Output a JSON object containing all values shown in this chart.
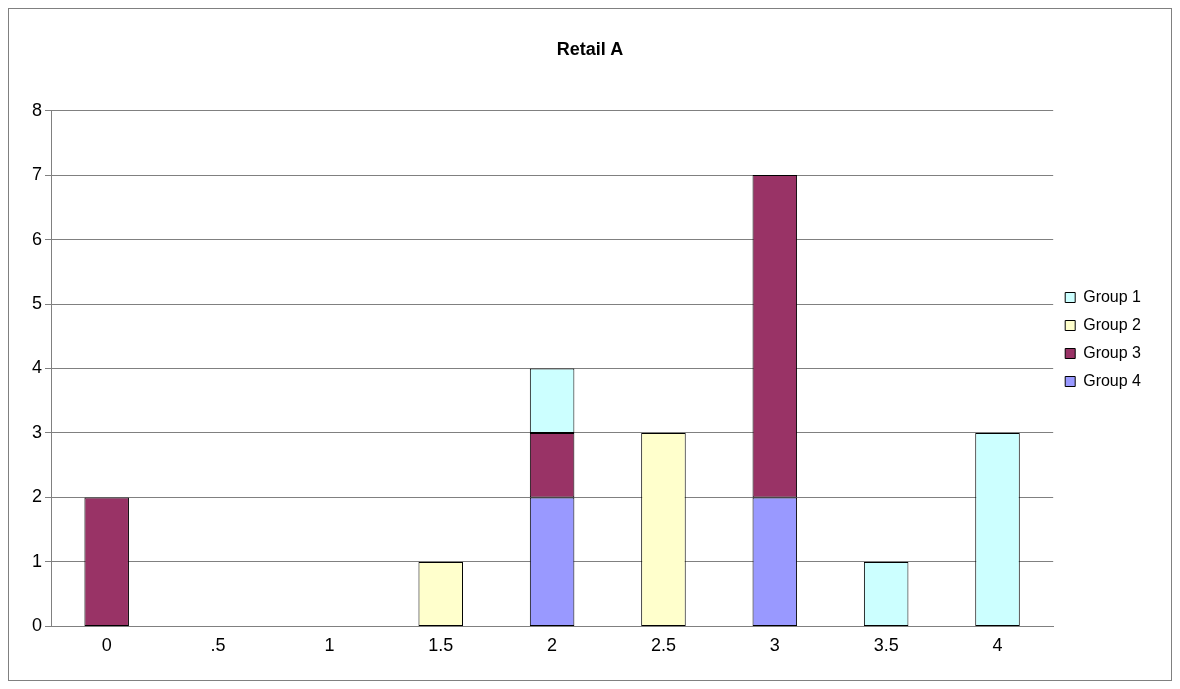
{
  "chart_data": {
    "type": "bar",
    "title": "Retail A",
    "categories": [
      "0",
      ".5",
      "1",
      "1.5",
      "2",
      "2.5",
      "3",
      "3.5",
      "4"
    ],
    "stacked": true,
    "series": [
      {
        "name": "Group 4",
        "color": "#9999ff",
        "values": [
          null,
          null,
          null,
          null,
          2,
          null,
          2,
          null,
          null
        ]
      },
      {
        "name": "Group 3",
        "color": "#993366",
        "values": [
          2,
          null,
          null,
          null,
          1,
          null,
          5,
          null,
          null
        ]
      },
      {
        "name": "Group 2",
        "color": "#ffffcc",
        "values": [
          null,
          null,
          null,
          1,
          null,
          3,
          null,
          null,
          null
        ]
      },
      {
        "name": "Group 1",
        "color": "#ccffff",
        "values": [
          null,
          null,
          null,
          null,
          1,
          null,
          null,
          1,
          3
        ]
      }
    ],
    "ylim": [
      0,
      8
    ],
    "yticks": [
      0,
      1,
      2,
      3,
      4,
      5,
      6,
      7,
      8
    ],
    "grid": "y",
    "legend": "right"
  }
}
